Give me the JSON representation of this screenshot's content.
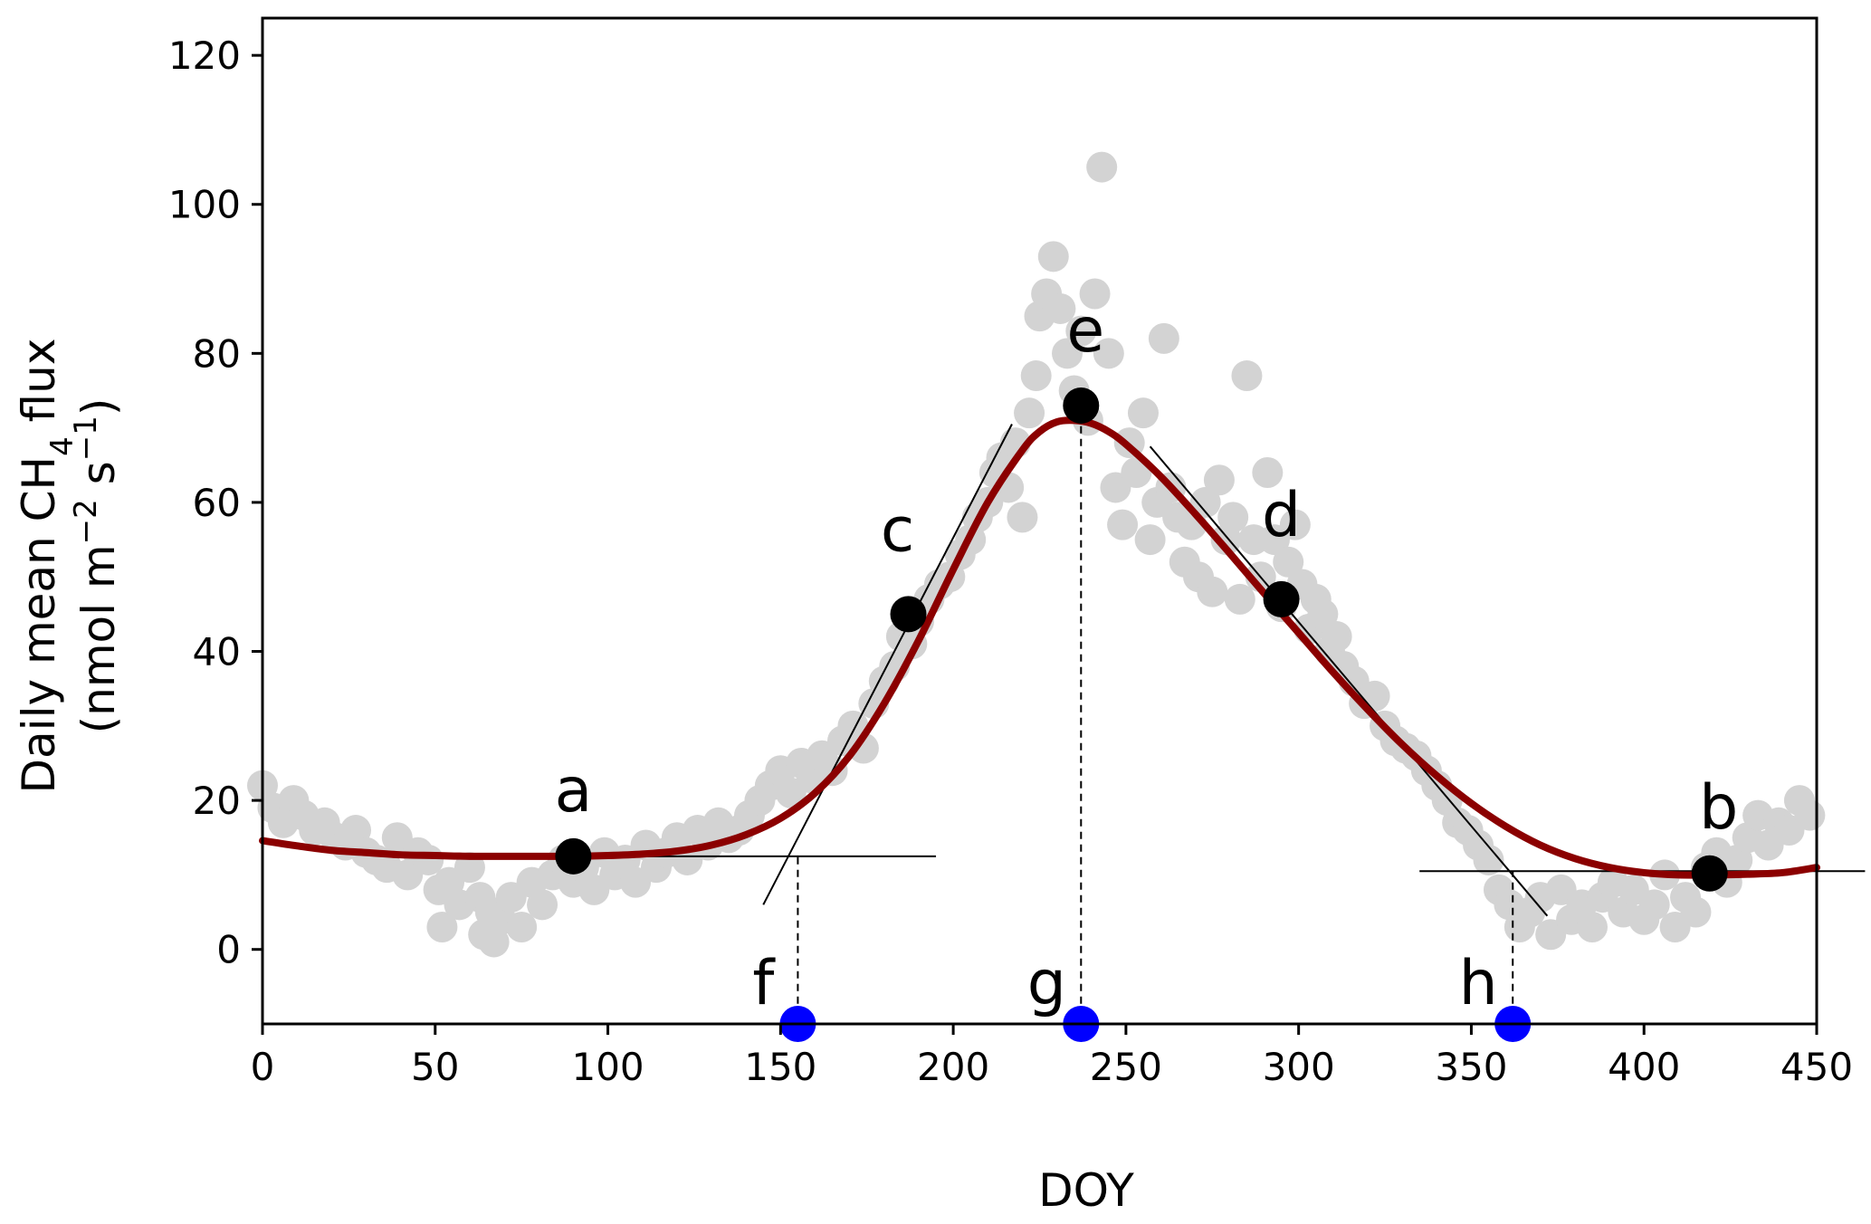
{
  "chart_data": {
    "type": "scatter",
    "xlabel": "DOY",
    "ylabel_line1": "Daily mean CH",
    "ylabel_sub": "4",
    "ylabel_line1_end": " flux",
    "ylabel_line2": "(nmol m",
    "ylabel_line2_sup1": "−2",
    "ylabel_line2_mid": " s",
    "ylabel_line2_sup2": "−1",
    "ylabel_line2_end": ")",
    "xlim": [
      0,
      450
    ],
    "ylim": [
      -10,
      125
    ],
    "xticks": [
      0,
      50,
      100,
      150,
      200,
      250,
      300,
      350,
      400,
      450
    ],
    "yticks": [
      0,
      20,
      40,
      60,
      80,
      100,
      120
    ],
    "grid": false,
    "colors": {
      "observations": "#d3d3d3",
      "fit": "#8b0000",
      "key_points": "#000000",
      "phenology_dates": "#0000ff",
      "tangents": "#000000"
    },
    "observations": {
      "x": [
        0,
        3,
        6,
        9,
        12,
        15,
        18,
        21,
        24,
        27,
        30,
        33,
        36,
        39,
        42,
        45,
        48,
        51,
        52,
        54,
        57,
        60,
        63,
        64,
        66,
        67,
        69,
        72,
        75,
        78,
        81,
        84,
        87,
        90,
        93,
        96,
        99,
        102,
        105,
        108,
        111,
        114,
        117,
        120,
        123,
        126,
        129,
        132,
        135,
        138,
        141,
        144,
        147,
        150,
        153,
        156,
        159,
        162,
        165,
        168,
        171,
        174,
        177,
        180,
        183,
        185,
        188,
        190,
        193,
        196,
        199,
        202,
        205,
        207,
        210,
        212,
        214,
        216,
        218,
        220,
        222,
        224,
        225,
        227,
        229,
        231,
        233,
        235,
        237,
        239,
        241,
        243,
        245,
        247,
        249,
        251,
        253,
        255,
        257,
        259,
        261,
        263,
        265,
        267,
        269,
        271,
        273,
        275,
        277,
        279,
        281,
        283,
        285,
        287,
        289,
        291,
        293,
        295,
        297,
        299,
        301,
        303,
        305,
        307,
        309,
        311,
        313,
        316,
        319,
        322,
        325,
        328,
        331,
        334,
        337,
        340,
        343,
        346,
        349,
        352,
        355,
        358,
        361,
        364,
        367,
        370,
        373,
        376,
        379,
        382,
        385,
        388,
        391,
        394,
        397,
        400,
        403,
        406,
        409,
        412,
        415,
        418,
        421,
        424,
        427,
        430,
        433,
        436,
        439,
        442,
        445,
        448
      ],
      "y": [
        22,
        19,
        17,
        20,
        18,
        16,
        17,
        15,
        14,
        16,
        13,
        12,
        11,
        15,
        10,
        13,
        12,
        8,
        3,
        9,
        6,
        11,
        7,
        2,
        5,
        1,
        4,
        7,
        3,
        9,
        6,
        10,
        12,
        9,
        11,
        8,
        13,
        10,
        12,
        9,
        14,
        11,
        13,
        15,
        12,
        16,
        14,
        17,
        15,
        16,
        18,
        20,
        22,
        24,
        21,
        25,
        23,
        26,
        24,
        28,
        30,
        27,
        33,
        36,
        38,
        42,
        41,
        44,
        47,
        49,
        50,
        53,
        55,
        58,
        60,
        64,
        66,
        62,
        68,
        58,
        72,
        77,
        85,
        88,
        93,
        86,
        80,
        75,
        83,
        71,
        88,
        105,
        80,
        62,
        57,
        68,
        64,
        72,
        55,
        60,
        82,
        62,
        58,
        52,
        57,
        50,
        60,
        48,
        63,
        55,
        58,
        47,
        77,
        55,
        50,
        64,
        55,
        46,
        52,
        57,
        49,
        43,
        47,
        45,
        40,
        42,
        38,
        36,
        33,
        34,
        30,
        28,
        27,
        26,
        24,
        22,
        20,
        17,
        16,
        14,
        12,
        8,
        6,
        3,
        5,
        7,
        2,
        8,
        4,
        6,
        3,
        7,
        9,
        5,
        8,
        4,
        6,
        10,
        3,
        7,
        5,
        11,
        13,
        9,
        12,
        15,
        18,
        14,
        17,
        16,
        20,
        18
      ]
    },
    "fit_curve": {
      "x": [
        0,
        10,
        20,
        30,
        40,
        50,
        60,
        70,
        80,
        90,
        100,
        110,
        120,
        130,
        140,
        150,
        160,
        170,
        180,
        190,
        200,
        210,
        220,
        225,
        230,
        235,
        240,
        245,
        250,
        260,
        270,
        280,
        290,
        300,
        310,
        320,
        330,
        340,
        350,
        360,
        370,
        380,
        390,
        400,
        410,
        420,
        430,
        440,
        450
      ],
      "y": [
        14.6,
        13.9,
        13.3,
        13.0,
        12.7,
        12.6,
        12.5,
        12.5,
        12.5,
        12.5,
        12.6,
        12.8,
        13.2,
        14.0,
        15.4,
        17.6,
        21.0,
        26.0,
        33.0,
        41.5,
        51.0,
        60.0,
        67.0,
        69.5,
        70.8,
        71.0,
        70.6,
        69.5,
        67.8,
        63.5,
        58.5,
        53.2,
        47.8,
        42.5,
        37.2,
        32.2,
        27.5,
        23.3,
        19.6,
        16.5,
        14.0,
        12.2,
        11.0,
        10.3,
        10.0,
        10.0,
        10.1,
        10.3,
        11.0
      ]
    },
    "key_points": [
      {
        "label": "a",
        "x": 90,
        "y": 12.5
      },
      {
        "label": "b",
        "x": 419,
        "y": 10.2
      },
      {
        "label": "c",
        "x": 187,
        "y": 45
      },
      {
        "label": "d",
        "x": 295,
        "y": 47
      },
      {
        "label": "e",
        "x": 237,
        "y": 73
      }
    ],
    "phenology_dates": [
      {
        "label": "f",
        "x": 155
      },
      {
        "label": "g",
        "x": 237
      },
      {
        "label": "h",
        "x": 362
      }
    ],
    "tangent_lines": [
      {
        "x": [
          67,
          195
        ],
        "y": [
          12.5,
          12.5
        ]
      },
      {
        "x": [
          145,
          217
        ],
        "y": [
          6,
          70.5
        ]
      },
      {
        "x": [
          335,
          464
        ],
        "y": [
          10.5,
          10.5
        ]
      },
      {
        "x": [
          257,
          372
        ],
        "y": [
          67.5,
          4.5
        ]
      }
    ],
    "dashed_lines": [
      {
        "x": 155,
        "y": [
          -9,
          12.5
        ]
      },
      {
        "x": 237,
        "y": [
          -9,
          73
        ]
      },
      {
        "x": 362,
        "y": [
          -9,
          10.5
        ]
      }
    ]
  }
}
